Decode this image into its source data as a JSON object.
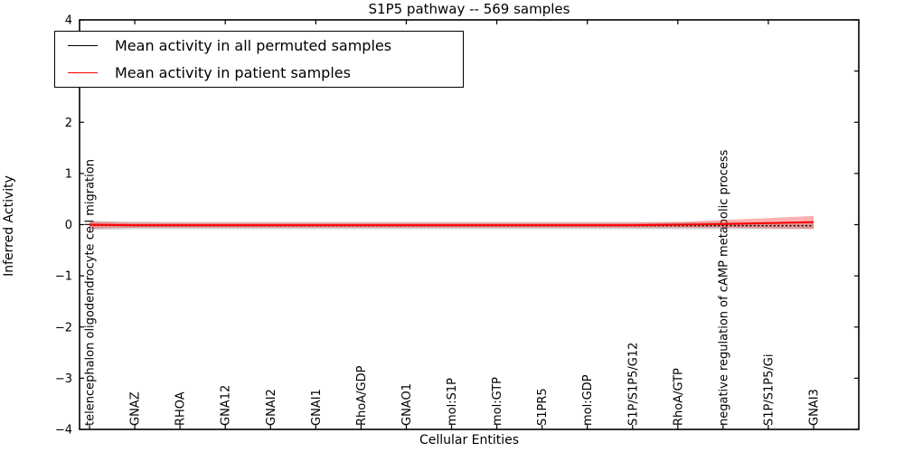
{
  "title": "S1P5 pathway -- 569 samples",
  "legend": {
    "entries": [
      {
        "label": "Mean activity in all permuted samples",
        "color": "#000000"
      },
      {
        "label": "Mean activity in patient samples",
        "color": "#ff0000"
      }
    ]
  },
  "chart_data": {
    "type": "line",
    "title": "S1P5 pathway -- 569 samples",
    "xlabel": "Cellular Entities",
    "ylabel": "Inferred Activity",
    "ylim": [
      -4,
      4
    ],
    "yticks": [
      4,
      3,
      2,
      1,
      0,
      -1,
      -2,
      -3,
      -4
    ],
    "grid": false,
    "legend_position": "upper left",
    "categories": [
      "telencephalon oligodendrocyte cell migration",
      "GNAZ",
      "RHOA",
      "GNA12",
      "GNAI2",
      "GNAI1",
      "RhoA/GDP",
      "GNAO1",
      "mol:S1P",
      "mol:GTP",
      "S1PR5",
      "mol:GDP",
      "S1P/S1P5/G12",
      "RhoA/GTP",
      "negative regulation of cAMP metabolic process",
      "S1P/S1P5/Gi",
      "GNAI3"
    ],
    "series": [
      {
        "name": "Mean activity in all permuted samples",
        "color": "#000000",
        "style": "dotted",
        "values": [
          -0.01,
          -0.02,
          -0.02,
          -0.02,
          -0.02,
          -0.02,
          -0.02,
          -0.02,
          -0.02,
          -0.02,
          -0.02,
          -0.02,
          -0.02,
          -0.02,
          -0.02,
          -0.02,
          -0.02
        ]
      },
      {
        "name": "Mean activity in patient samples",
        "color": "#ff0000",
        "style": "solid",
        "values": [
          0.0,
          -0.01,
          -0.01,
          -0.01,
          -0.01,
          -0.01,
          -0.01,
          -0.01,
          -0.01,
          -0.01,
          -0.01,
          -0.01,
          -0.01,
          0.0,
          0.01,
          0.03,
          0.05
        ]
      }
    ],
    "bands": [
      {
        "name": "permuted samples range",
        "color": "rgba(90,90,90,0.25)",
        "upper": [
          0.07,
          0.06,
          0.05,
          0.05,
          0.05,
          0.05,
          0.05,
          0.05,
          0.05,
          0.05,
          0.05,
          0.05,
          0.05,
          0.05,
          0.05,
          0.05,
          0.05
        ],
        "lower": [
          -0.1,
          -0.09,
          -0.09,
          -0.09,
          -0.09,
          -0.09,
          -0.09,
          -0.09,
          -0.09,
          -0.09,
          -0.09,
          -0.09,
          -0.09,
          -0.09,
          -0.09,
          -0.09,
          -0.09
        ]
      },
      {
        "name": "patient samples range",
        "color": "rgba(255,0,0,0.30)",
        "upper": [
          0.06,
          0.04,
          0.04,
          0.04,
          0.04,
          0.04,
          0.04,
          0.04,
          0.04,
          0.04,
          0.04,
          0.04,
          0.04,
          0.05,
          0.09,
          0.13,
          0.17
        ],
        "lower": [
          -0.08,
          -0.06,
          -0.06,
          -0.06,
          -0.06,
          -0.06,
          -0.06,
          -0.06,
          -0.06,
          -0.06,
          -0.06,
          -0.06,
          -0.06,
          -0.06,
          -0.06,
          -0.07,
          -0.08
        ]
      }
    ]
  }
}
